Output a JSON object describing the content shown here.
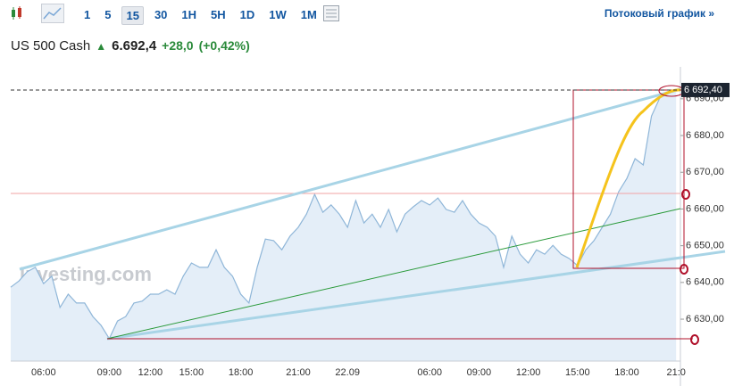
{
  "toolbar": {
    "timeframes": [
      "1",
      "5",
      "15",
      "30",
      "1H",
      "5H",
      "1D",
      "1W",
      "1M"
    ],
    "active": "15",
    "stream_link": "Потоковый график »"
  },
  "quote": {
    "name": "US 500 Cash",
    "price": "6.692,4",
    "change": "+28,0",
    "change_pct": "(+0,42%)"
  },
  "chart_data": {
    "type": "area",
    "watermark": "Investing.com",
    "line_color": "#8fb6d8",
    "fill_color": "#e4eef8",
    "categories": [
      null,
      null,
      null,
      null,
      "06:00",
      null,
      null,
      null,
      null,
      null,
      null,
      null,
      "09:00",
      null,
      null,
      null,
      null,
      "12:00",
      null,
      null,
      null,
      null,
      "15:00",
      null,
      null,
      null,
      null,
      null,
      "18:00",
      null,
      null,
      null,
      null,
      null,
      null,
      "21:00",
      null,
      null,
      null,
      null,
      null,
      "22.09",
      null,
      null,
      null,
      null,
      null,
      null,
      null,
      null,
      null,
      "06:00",
      null,
      null,
      null,
      null,
      null,
      "09:00",
      null,
      null,
      null,
      null,
      null,
      "12:00",
      null,
      null,
      null,
      null,
      null,
      "15:00",
      null,
      null,
      null,
      null,
      null,
      "18:00",
      null,
      null,
      null,
      null,
      null,
      "21:0"
    ],
    "values": [
      6638.7,
      6640.4,
      6642.9,
      6644.1,
      6639.7,
      6641.7,
      6633.2,
      6636.8,
      6634.4,
      6634.4,
      6630.7,
      6628.3,
      6624.7,
      6629.5,
      6630.7,
      6634.4,
      6634.9,
      6636.8,
      6636.8,
      6638.0,
      6636.8,
      6641.7,
      6645.3,
      6644.1,
      6644.1,
      6648.9,
      6644.1,
      6641.7,
      6636.8,
      6634.4,
      6644.1,
      6651.8,
      6651.4,
      6648.9,
      6652.6,
      6655.0,
      6658.6,
      6664.0,
      6659.1,
      6661.1,
      6658.6,
      6655.0,
      6662.3,
      6656.2,
      6658.6,
      6655.0,
      6659.9,
      6653.8,
      6658.6,
      6660.6,
      6662.3,
      6661.1,
      6663.0,
      6659.9,
      6659.1,
      6662.3,
      6658.6,
      6656.2,
      6655.0,
      6652.6,
      6644.1,
      6652.6,
      6647.7,
      6645.3,
      6648.9,
      6647.7,
      6650.1,
      6647.7,
      6646.5,
      6644.6,
      6648.9,
      6651.4,
      6655.0,
      6658.6,
      6664.7,
      6668.3,
      6673.7,
      6672.0,
      6685.3,
      6690.2,
      6691.4,
      6692.4
    ],
    "last_label": "6 692,40",
    "ylim": [
      6618.6,
      6698.7
    ],
    "yticks": [
      {
        "value": 6630,
        "label": "6 630,00"
      },
      {
        "value": 6640,
        "label": "6 640,00"
      },
      {
        "value": 6650,
        "label": "6 650,00"
      },
      {
        "value": 6660,
        "label": "6 660,00"
      },
      {
        "value": 6670,
        "label": "6 670,00"
      },
      {
        "value": 6680,
        "label": "6 680,00"
      },
      {
        "value": 6690,
        "label": "6 690,00"
      }
    ]
  }
}
